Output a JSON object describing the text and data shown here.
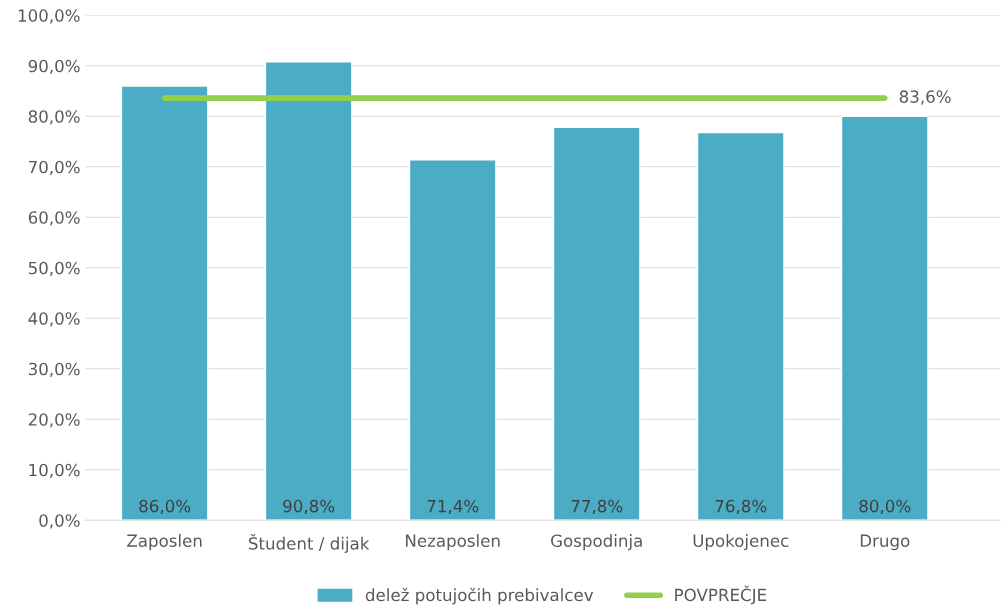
{
  "chart_data": {
    "type": "bar",
    "categories": [
      "Zaposlen",
      "Študent / dijak",
      "Nezaposlen",
      "Gospodinja",
      "Upokojenec",
      "Drugo"
    ],
    "series": [
      {
        "name": "delež potujočih prebivalcev",
        "color": "#4bacc6",
        "values": [
          86.0,
          90.8,
          71.4,
          77.8,
          76.8,
          80.0
        ],
        "value_labels": [
          "86,0%",
          "90,8%",
          "71,4%",
          "77,8%",
          "76,8%",
          "80,0%"
        ]
      },
      {
        "name": "POVPREČJE",
        "type": "line",
        "color": "#92d050",
        "values": [
          83.6,
          83.6,
          83.6,
          83.6,
          83.6,
          83.6
        ],
        "value_labels": [
          null,
          null,
          null,
          null,
          null,
          "83,6%"
        ]
      }
    ],
    "ylim": [
      0,
      100
    ],
    "yticks": [
      {
        "value": 0,
        "label": "0,0%"
      },
      {
        "value": 10,
        "label": "10,0%"
      },
      {
        "value": 20,
        "label": "20,0%"
      },
      {
        "value": 30,
        "label": "30,0%"
      },
      {
        "value": 40,
        "label": "40,0%"
      },
      {
        "value": 50,
        "label": "50,0%"
      },
      {
        "value": 60,
        "label": "60,0%"
      },
      {
        "value": 70,
        "label": "70,0%"
      },
      {
        "value": 80,
        "label": "80,0%"
      },
      {
        "value": 90,
        "label": "90,0%"
      },
      {
        "value": 100,
        "label": "100,0%"
      }
    ],
    "grid": "y",
    "legend": "bottom",
    "marker": "none",
    "line_style": "solid"
  }
}
